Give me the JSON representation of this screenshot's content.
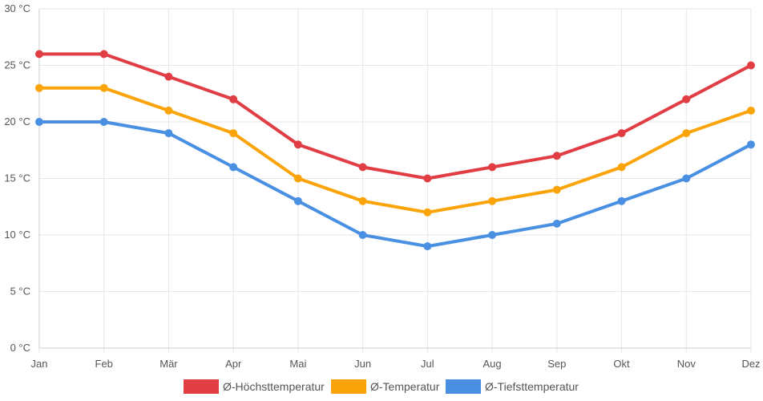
{
  "chart_data": {
    "type": "line",
    "categories": [
      "Jan",
      "Feb",
      "Mär",
      "Apr",
      "Mai",
      "Jun",
      "Jul",
      "Aug",
      "Sep",
      "Okt",
      "Nov",
      "Dez"
    ],
    "y_unit": "°C",
    "ylim": [
      0,
      30
    ],
    "y_ticks": [
      0,
      5,
      10,
      15,
      20,
      25,
      30
    ],
    "y_tick_labels": [
      "0 °C",
      "5 °C",
      "10 °C",
      "15 °C",
      "20 °C",
      "25 °C",
      "30 °C"
    ],
    "grid": true,
    "legend_position": "bottom",
    "series": [
      {
        "name": "Ø-Höchsttemperatur",
        "color": "#e03e44",
        "values": [
          26,
          26,
          24,
          22,
          18,
          16,
          15,
          16,
          17,
          19,
          22,
          25
        ]
      },
      {
        "name": "Ø-Temperatur",
        "color": "#fba40a",
        "values": [
          23,
          23,
          21,
          19,
          15,
          13,
          12,
          13,
          14,
          16,
          19,
          21
        ]
      },
      {
        "name": "Ø-Tiefsttemperatur",
        "color": "#4a90e2",
        "values": [
          20,
          20,
          19,
          16,
          13,
          10,
          9,
          10,
          11,
          13,
          15,
          18
        ]
      }
    ]
  }
}
